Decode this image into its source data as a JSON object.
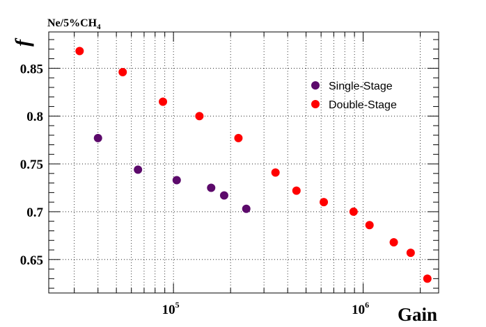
{
  "chart_data": {
    "type": "scatter",
    "title": "Ne/5%CH",
    "title_subscript": "4",
    "xlabel": "Gain",
    "ylabel": "f",
    "x_scale": "log",
    "xlim": [
      22000,
      2500000
    ],
    "ylim": [
      0.615,
      0.888
    ],
    "x_ticks": [
      {
        "value": 100000,
        "base": "10",
        "exp": "5"
      },
      {
        "value": 1000000,
        "base": "10",
        "exp": "6"
      }
    ],
    "y_ticks": [
      {
        "value": 0.65,
        "label": "0.65"
      },
      {
        "value": 0.7,
        "label": "0.7"
      },
      {
        "value": 0.75,
        "label": "0.75"
      },
      {
        "value": 0.8,
        "label": "0.8"
      },
      {
        "value": 0.85,
        "label": "0.85"
      }
    ],
    "grid": true,
    "legend_position": "top-right",
    "series": [
      {
        "name": "Single-Stage",
        "color": "#5c0a6b",
        "points": [
          {
            "x": 40000,
            "y": 0.777
          },
          {
            "x": 65000,
            "y": 0.744
          },
          {
            "x": 104000,
            "y": 0.733
          },
          {
            "x": 158000,
            "y": 0.725
          },
          {
            "x": 185000,
            "y": 0.717
          },
          {
            "x": 242000,
            "y": 0.703
          }
        ]
      },
      {
        "name": "Double-Stage",
        "color": "#ff0000",
        "points": [
          {
            "x": 32000,
            "y": 0.868
          },
          {
            "x": 54000,
            "y": 0.846
          },
          {
            "x": 88000,
            "y": 0.815
          },
          {
            "x": 137000,
            "y": 0.8
          },
          {
            "x": 220000,
            "y": 0.777
          },
          {
            "x": 345000,
            "y": 0.741
          },
          {
            "x": 445000,
            "y": 0.722
          },
          {
            "x": 620000,
            "y": 0.71
          },
          {
            "x": 890000,
            "y": 0.7
          },
          {
            "x": 1080000,
            "y": 0.686
          },
          {
            "x": 1450000,
            "y": 0.668
          },
          {
            "x": 1780000,
            "y": 0.657
          },
          {
            "x": 2180000,
            "y": 0.63
          }
        ]
      }
    ]
  }
}
